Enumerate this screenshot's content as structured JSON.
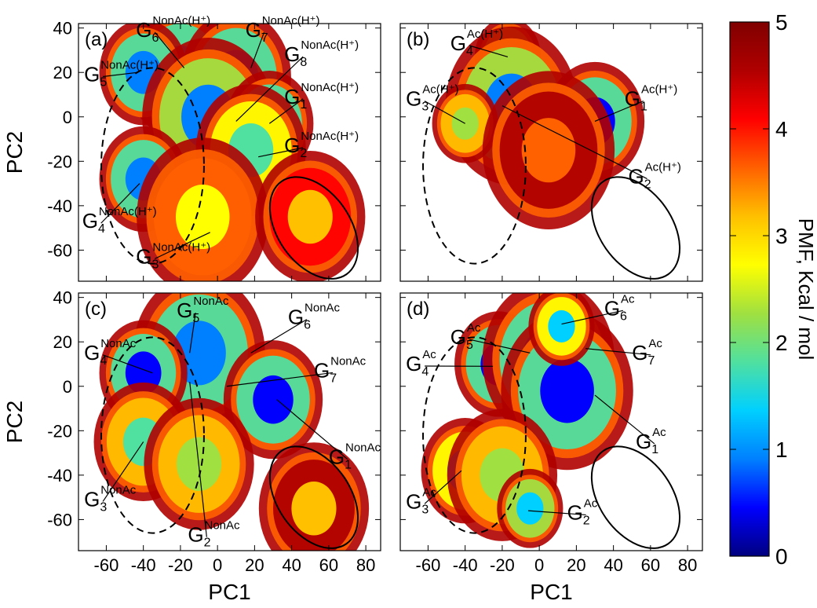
{
  "chart_data": {
    "type": "heatmap",
    "x_ticks": [
      "-60",
      "-40",
      "-20",
      "0",
      "20",
      "40",
      "60",
      "80"
    ],
    "y_ticks": [
      "40",
      "20",
      "0",
      "-20",
      "-40",
      "-60"
    ],
    "xlim": [
      -75,
      88
    ],
    "ylim": [
      -74,
      42
    ],
    "colorbar": {
      "label": "PMF, Kcal / mol",
      "ticks": [
        "0",
        "1",
        "2",
        "3",
        "4",
        "5"
      ],
      "range": [
        0,
        5
      ],
      "colors": [
        "#000080",
        "#0000ff",
        "#0080ff",
        "#00d0ff",
        "#50e0a0",
        "#a0e040",
        "#ffff00",
        "#ffc000",
        "#ff6000",
        "#ff0000",
        "#b00000",
        "#800000"
      ]
    },
    "panels": [
      {
        "id": "a",
        "tag": "(a)",
        "xlabel": "",
        "ylabel": "PC2",
        "labels": [
          {
            "base": "G",
            "sub": "6",
            "sup": "NonAc(H⁺)",
            "at": [
              -44,
              36
            ],
            "to": [
              -18,
              22
            ]
          },
          {
            "base": "G",
            "sub": "7",
            "sup": "NonAc(H⁺)",
            "at": [
              15,
              36
            ],
            "to": [
              18,
              22
            ]
          },
          {
            "base": "G",
            "sub": "8",
            "sup": "NonAc(H⁺)",
            "at": [
              36,
              25
            ],
            "to": [
              10,
              -2
            ]
          },
          {
            "base": "G",
            "sub": "5",
            "sup": "NonAc(H⁺)",
            "at": [
              -72,
              16
            ],
            "to": [
              -43,
              20
            ]
          },
          {
            "base": "G",
            "sub": "1",
            "sup": "NonAc(H⁺)",
            "at": [
              36,
              6
            ],
            "to": [
              28,
              -3
            ]
          },
          {
            "base": "G",
            "sub": "2",
            "sup": "NonAc(H⁺)",
            "at": [
              36,
              -16
            ],
            "to": [
              22,
              -18
            ]
          },
          {
            "base": "G",
            "sub": "4",
            "sup": "NonAc(H⁺)",
            "at": [
              -73,
              -50
            ],
            "to": [
              -42,
              -30
            ]
          },
          {
            "base": "G",
            "sub": "3",
            "sup": "NonAc(H⁺)",
            "at": [
              -44,
              -66
            ],
            "to": [
              -4,
              -52
            ]
          }
        ],
        "blobs": [
          {
            "x": -20,
            "y": 20,
            "level": 0.8,
            "size": 10
          },
          {
            "x": 10,
            "y": 18,
            "level": 0.7,
            "size": 10
          },
          {
            "x": -40,
            "y": 20,
            "level": 0.8,
            "size": 8
          },
          {
            "x": -5,
            "y": 0,
            "level": 1.0,
            "size": 12
          },
          {
            "x": 28,
            "y": -3,
            "level": 0.5,
            "size": 8
          },
          {
            "x": 18,
            "y": -15,
            "level": 1.6,
            "size": 10
          },
          {
            "x": -40,
            "y": -28,
            "level": 0.7,
            "size": 8
          },
          {
            "x": -8,
            "y": -45,
            "level": 2.5,
            "size": 12
          },
          {
            "x": 50,
            "y": -45,
            "level": 3.0,
            "size": 10
          }
        ]
      },
      {
        "id": "b",
        "tag": "(b)",
        "xlabel": "",
        "ylabel": "",
        "labels": [
          {
            "base": "G",
            "sub": "4",
            "sup": "Ac(H⁺)",
            "at": [
              -48,
              30
            ],
            "to": [
              -17,
              27
            ]
          },
          {
            "base": "G",
            "sub": "3",
            "sup": "Ac(H⁺)",
            "at": [
              -72,
              5
            ],
            "to": [
              -40,
              -3
            ]
          },
          {
            "base": "G",
            "sub": "1",
            "sup": "Ac(H⁺)",
            "at": [
              46,
              5
            ],
            "to": [
              30,
              -2
            ]
          },
          {
            "base": "G",
            "sub": "2",
            "sup": "Ac(H⁺)",
            "at": [
              48,
              -30
            ],
            "to": [
              -20,
              5
            ]
          }
        ],
        "blobs": [
          {
            "x": -17,
            "y": 27,
            "level": 1.5,
            "size": 6
          },
          {
            "x": -15,
            "y": 5,
            "level": 1.0,
            "size": 12
          },
          {
            "x": 30,
            "y": -2,
            "level": 0.5,
            "size": 9
          },
          {
            "x": -40,
            "y": -3,
            "level": 2.2,
            "size": 6
          },
          {
            "x": 5,
            "y": -15,
            "level": 3.5,
            "size": 12
          }
        ]
      },
      {
        "id": "c",
        "tag": "(c)",
        "xlabel": "PC1",
        "ylabel": "PC2",
        "labels": [
          {
            "base": "G",
            "sub": "5",
            "sup": "NonAc",
            "at": [
              -22,
              31
            ],
            "to": [
              -15,
              15
            ]
          },
          {
            "base": "G",
            "sub": "6",
            "sup": "NonAc",
            "at": [
              38,
              28
            ],
            "to": [
              18,
              15
            ]
          },
          {
            "base": "G",
            "sub": "4",
            "sup": "NonAc",
            "at": [
              -72,
              12
            ],
            "to": [
              -35,
              6
            ]
          },
          {
            "base": "G",
            "sub": "7",
            "sup": "NonAc",
            "at": [
              52,
              4
            ],
            "to": [
              5,
              0
            ]
          },
          {
            "base": "G",
            "sub": "1",
            "sup": "NonAc",
            "at": [
              60,
              -35
            ],
            "to": [
              32,
              -6
            ]
          },
          {
            "base": "G",
            "sub": "3",
            "sup": "NonAc",
            "at": [
              -72,
              -54
            ],
            "to": [
              -40,
              -25
            ]
          },
          {
            "base": "G",
            "sub": "2",
            "sup": "NonAc",
            "at": [
              -16,
              -70
            ],
            "to": [
              -15,
              2
            ]
          }
        ],
        "blobs": [
          {
            "x": -10,
            "y": 15,
            "level": 0.7,
            "size": 12
          },
          {
            "x": -40,
            "y": 6,
            "level": 0.6,
            "size": 8
          },
          {
            "x": 30,
            "y": -6,
            "level": 0.6,
            "size": 9
          },
          {
            "x": -40,
            "y": -25,
            "level": 1.8,
            "size": 9
          },
          {
            "x": -10,
            "y": -35,
            "level": 2.2,
            "size": 10
          },
          {
            "x": 52,
            "y": -55,
            "level": 3.2,
            "size": 10
          }
        ]
      },
      {
        "id": "d",
        "tag": "(d)",
        "xlabel": "PC1",
        "ylabel": "",
        "labels": [
          {
            "base": "G",
            "sub": "6",
            "sup": "Ac",
            "at": [
              35,
              32
            ],
            "to": [
              12,
              28
            ]
          },
          {
            "base": "G",
            "sub": "5",
            "sup": "Ac",
            "at": [
              -48,
              19
            ],
            "to": [
              -5,
              15
            ]
          },
          {
            "base": "G",
            "sub": "7",
            "sup": "Ac",
            "at": [
              50,
              12
            ],
            "to": [
              25,
              17
            ]
          },
          {
            "base": "G",
            "sub": "4",
            "sup": "Ac",
            "at": [
              -72,
              7
            ],
            "to": [
              -25,
              9
            ]
          },
          {
            "base": "G",
            "sub": "1",
            "sup": "Ac",
            "at": [
              52,
              -28
            ],
            "to": [
              30,
              -4
            ]
          },
          {
            "base": "G",
            "sub": "3",
            "sup": "Ac",
            "at": [
              -72,
              -55
            ],
            "to": [
              -42,
              -38
            ]
          },
          {
            "base": "G",
            "sub": "2",
            "sup": "Ac",
            "at": [
              15,
              -60
            ],
            "to": [
              -6,
              -56
            ]
          }
        ],
        "blobs": [
          {
            "x": -22,
            "y": 10,
            "level": 0.5,
            "size": 8
          },
          {
            "x": 5,
            "y": 12,
            "level": 0.7,
            "size": 12
          },
          {
            "x": 15,
            "y": -2,
            "level": 0.6,
            "size": 12
          },
          {
            "x": 12,
            "y": 27,
            "level": 1.5,
            "size": 6
          },
          {
            "x": -40,
            "y": -38,
            "level": 1.3,
            "size": 8
          },
          {
            "x": -20,
            "y": -40,
            "level": 2.2,
            "size": 10
          },
          {
            "x": -5,
            "y": -55,
            "level": 1.2,
            "size": 6
          }
        ]
      }
    ]
  }
}
